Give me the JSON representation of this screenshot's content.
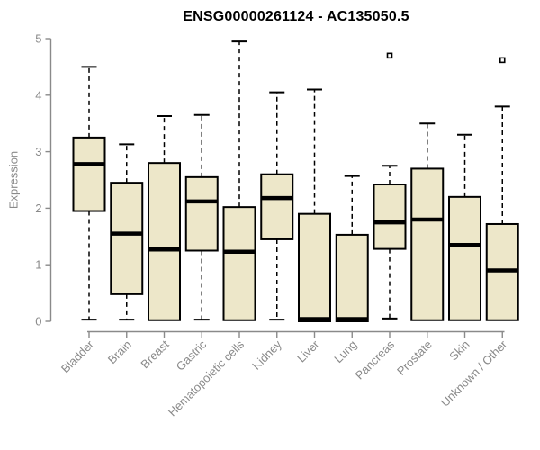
{
  "chart_data": {
    "type": "box",
    "title": "ENSG00000261124 - AC135050.5",
    "xlabel": "",
    "ylabel": "Expression",
    "ylim": [
      0,
      5
    ],
    "yticks": [
      0,
      1,
      2,
      3,
      4,
      5
    ],
    "grid": false,
    "legend": false,
    "categories": [
      "Bladder",
      "Brain",
      "Breast",
      "Gastric",
      "Hematopoietic cells",
      "Kidney",
      "Liver",
      "Lung",
      "Pancreas",
      "Prostate",
      "Skin",
      "Unknown / Other"
    ],
    "boxes": [
      {
        "category": "Bladder",
        "whisker_low": 0.03,
        "q1": 1.95,
        "median": 2.78,
        "q3": 3.25,
        "whisker_high": 4.5,
        "outliers": []
      },
      {
        "category": "Brain",
        "whisker_low": 0.03,
        "q1": 0.48,
        "median": 1.55,
        "q3": 2.45,
        "whisker_high": 3.13,
        "outliers": []
      },
      {
        "category": "Breast",
        "whisker_low": 0.02,
        "q1": 0.02,
        "median": 1.27,
        "q3": 2.8,
        "whisker_high": 3.63,
        "outliers": []
      },
      {
        "category": "Gastric",
        "whisker_low": 0.03,
        "q1": 1.25,
        "median": 2.12,
        "q3": 2.55,
        "whisker_high": 3.65,
        "outliers": []
      },
      {
        "category": "Hematopoietic cells",
        "whisker_low": 0.02,
        "q1": 0.02,
        "median": 1.23,
        "q3": 2.02,
        "whisker_high": 4.95,
        "outliers": []
      },
      {
        "category": "Kidney",
        "whisker_low": 0.03,
        "q1": 1.45,
        "median": 2.18,
        "q3": 2.6,
        "whisker_high": 4.05,
        "outliers": []
      },
      {
        "category": "Liver",
        "whisker_low": 0.0,
        "q1": 0.0,
        "median": 0.04,
        "q3": 1.9,
        "whisker_high": 4.1,
        "outliers": []
      },
      {
        "category": "Lung",
        "whisker_low": 0.0,
        "q1": 0.0,
        "median": 0.04,
        "q3": 1.53,
        "whisker_high": 2.57,
        "outliers": []
      },
      {
        "category": "Pancreas",
        "whisker_low": 0.05,
        "q1": 1.28,
        "median": 1.75,
        "q3": 2.42,
        "whisker_high": 2.75,
        "outliers": [
          4.7
        ]
      },
      {
        "category": "Prostate",
        "whisker_low": 0.02,
        "q1": 0.02,
        "median": 1.8,
        "q3": 2.7,
        "whisker_high": 3.5,
        "outliers": []
      },
      {
        "category": "Skin",
        "whisker_low": 0.02,
        "q1": 0.02,
        "median": 1.35,
        "q3": 2.2,
        "whisker_high": 3.3,
        "outliers": []
      },
      {
        "category": "Unknown / Other",
        "whisker_low": 0.02,
        "q1": 0.02,
        "median": 0.9,
        "q3": 1.72,
        "whisker_high": 3.8,
        "outliers": [
          4.62
        ]
      }
    ],
    "colors": {
      "box_fill": "#EDE7C9",
      "box_border": "#000000",
      "median": "#000000",
      "whisker": "#000000",
      "axis": "#8a8a8a",
      "tick_label": "#8a8a8a",
      "title": "#000000",
      "background": "#FFFFFF"
    }
  }
}
